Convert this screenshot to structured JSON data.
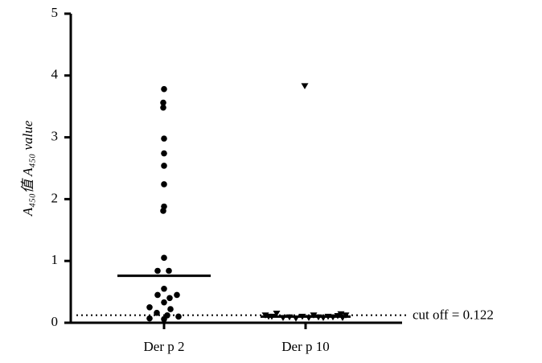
{
  "chart_data": {
    "type": "strip",
    "y_label": "A₄₅₀值 A₄₅₀ value",
    "categories": [
      "Der p 2",
      "Der p 10"
    ],
    "series": [
      {
        "marker": "circle",
        "color": "#000000",
        "values": [
          3.78,
          3.56,
          3.48,
          2.98,
          2.74,
          2.54,
          2.24,
          1.88,
          1.81,
          1.05,
          0.84,
          0.84,
          0.55,
          0.45,
          0.45,
          0.4,
          0.33,
          0.25,
          0.22,
          0.16,
          0.1,
          0.07,
          0.06,
          0.12
        ],
        "center_line": 0.76
      },
      {
        "marker": "triangle-down",
        "color": "#000000",
        "values": [
          3.83,
          0.15,
          0.12,
          0.1,
          0.08,
          0.09,
          0.07,
          0.1,
          0.08,
          0.12,
          0.09,
          0.08,
          0.1,
          0.09,
          0.11,
          0.14,
          0.12,
          0.1,
          0.08
        ],
        "center_line": 0.1
      }
    ],
    "reference_line": {
      "value": 0.122,
      "label": "cut off = 0.122",
      "style": "dotted"
    },
    "ylim": [
      0,
      5
    ],
    "yticks": [
      0,
      1,
      2,
      3,
      4,
      5
    ]
  }
}
